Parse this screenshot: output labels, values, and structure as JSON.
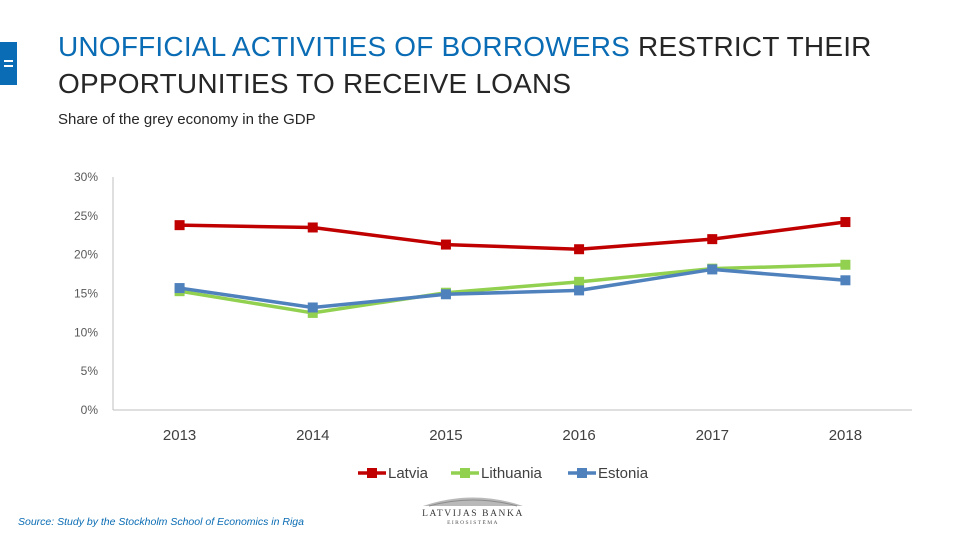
{
  "slide": {
    "title_highlight": "UNOFFICIAL ACTIVITIES OF BORROWERS",
    "title_rest": " RESTRICT THEIR OPPORTUNITIES TO RECEIVE LOANS",
    "subtitle": "Share of the grey economy in the GDP",
    "source": "Source: Study by the Stockholm School of Economics in Riga",
    "logo_name": "LATVIJAS BANKA",
    "logo_sub": "EIROSISTĒMA"
  },
  "colors": {
    "accent": "#0a6cb4",
    "latvia": "#c00000",
    "lithuania": "#92d050",
    "estonia": "#4f81bd"
  },
  "chart_data": {
    "type": "line",
    "title": "",
    "xlabel": "",
    "ylabel": "",
    "categories": [
      "2013",
      "2014",
      "2015",
      "2016",
      "2017",
      "2018"
    ],
    "y_ticks": [
      "0%",
      "5%",
      "10%",
      "15%",
      "20%",
      "25%",
      "30%"
    ],
    "ylim": [
      0,
      30
    ],
    "grid": false,
    "legend_position": "bottom",
    "series": [
      {
        "name": "Latvia",
        "color": "#c00000",
        "values": [
          23.8,
          23.5,
          21.3,
          20.7,
          22.0,
          24.2
        ]
      },
      {
        "name": "Lithuania",
        "color": "#92d050",
        "values": [
          15.3,
          12.5,
          15.1,
          16.5,
          18.2,
          18.7
        ]
      },
      {
        "name": "Estonia",
        "color": "#4f81bd",
        "values": [
          15.7,
          13.2,
          14.9,
          15.4,
          18.1,
          16.7
        ]
      }
    ]
  }
}
